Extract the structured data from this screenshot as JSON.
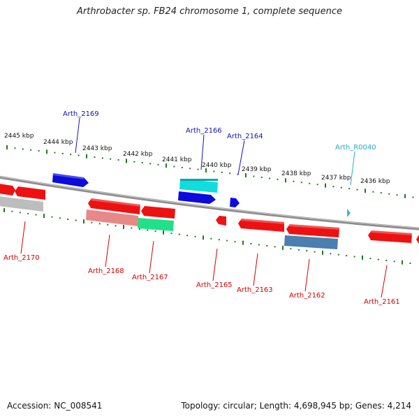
{
  "title": "Arthrobacter sp. FB24 chromosome 1, complete sequence",
  "accession": "Accession: NC_008541",
  "summary": "Topology: circular; Length: 4,698,945 bp; Genes: 4,214",
  "colors": {
    "backbone": "#8c8c8c",
    "ticks": "#1f7a1f",
    "gene_red": "#ee1111",
    "gene_blue": "#0b0bdd",
    "gene_cyan": "#11dddd",
    "gene_grey": "#bdbdbd",
    "gene_pink": "#e98888",
    "gene_green": "#22e08a",
    "gene_steel": "#4a7fae",
    "label_red": "#d40000",
    "label_blue": "#1111bb",
    "label_cyan": "#22aacc"
  },
  "kbp_labels": [
    "2445 kbp",
    "2444 kbp",
    "2443 kbp",
    "2442 kbp",
    "2441 kbp",
    "2440 kbp",
    "2439 kbp",
    "2438 kbp",
    "2437 kbp",
    "2436 kbp"
  ],
  "gene_labels": {
    "top": [
      "Arth_2169",
      "Arth_2166",
      "Arth_2164",
      "Arth_R0040"
    ],
    "bottom": [
      "Arth_2170",
      "Arth_2168",
      "Arth_2167",
      "Arth_2165",
      "Arth_2163",
      "Arth_2162",
      "Arth_2161"
    ]
  }
}
